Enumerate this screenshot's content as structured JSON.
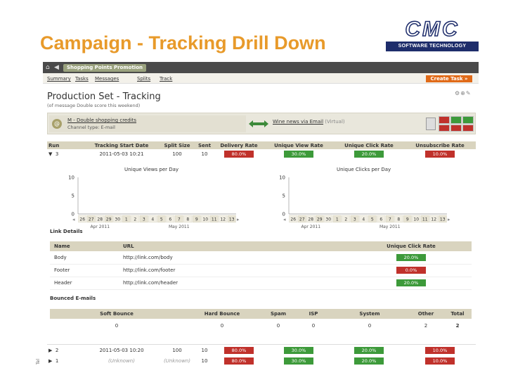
{
  "slide": {
    "title": "Campaign - Tracking Drill Down",
    "logo": {
      "letters": "CMC",
      "tagline": "SOFTWARE TECHNOLOGY"
    },
    "side_text": "Tel"
  },
  "app": {
    "topbar_title": "Shopping Points Promotion",
    "nav": [
      "Summary",
      "Tasks",
      "Messages",
      "Splits",
      "Track"
    ],
    "create_task_label": "Create Task »",
    "page_title": "Production Set - Tracking",
    "page_subtitle": "(of message Double score this weekend)",
    "channel": {
      "name": "M - Double shopping credits",
      "type": "Channel type: E-mail",
      "linked_name": "Wine news via Email",
      "linked_tag": "(Virtual)"
    },
    "colors": {
      "red": "#c0312b",
      "green": "#3d9a3a",
      "header": "#d9d4bf"
    },
    "run_table": {
      "headers": [
        "Run",
        "Tracking Start Date",
        "Split Size",
        "Sent",
        "Delivery Rate",
        "Unique View Rate",
        "Unique Click Rate",
        "Unsubscribe Rate"
      ],
      "expanded_row": {
        "run": "3",
        "start": "2011-05-03 10:21",
        "split": "100",
        "sent": "10",
        "delivery": "80.0%",
        "view": "30.0%",
        "click": "20.0%",
        "unsub": "10.0%"
      }
    },
    "charts": {
      "views_title": "Unique Views per Day",
      "clicks_title": "Unique Clicks per Day",
      "y_ticks": [
        "10",
        "5",
        "0"
      ],
      "x_ticks": [
        "26",
        "27",
        "28",
        "29",
        "30",
        "1",
        "2",
        "3",
        "4",
        "5",
        "6",
        "7",
        "8",
        "9",
        "10",
        "11",
        "12",
        "13"
      ],
      "month_labels": [
        "Apr 2011",
        "May 2011"
      ]
    },
    "chart_data": [
      {
        "type": "bar",
        "title": "Unique Views per Day",
        "categories": [
          "26",
          "27",
          "28",
          "29",
          "30",
          "1",
          "2",
          "3",
          "4",
          "5",
          "6",
          "7",
          "8",
          "9",
          "10",
          "11",
          "12",
          "13"
        ],
        "values": [
          0,
          0,
          0,
          0,
          0,
          0,
          0,
          0,
          0,
          0,
          0,
          0,
          0,
          0,
          0,
          0,
          0,
          0
        ],
        "ylim": [
          0,
          10
        ]
      },
      {
        "type": "bar",
        "title": "Unique Clicks per Day",
        "categories": [
          "26",
          "27",
          "28",
          "29",
          "30",
          "1",
          "2",
          "3",
          "4",
          "5",
          "6",
          "7",
          "8",
          "9",
          "10",
          "11",
          "12",
          "13"
        ],
        "values": [
          0,
          0,
          0,
          0,
          0,
          0,
          0,
          0,
          0,
          0,
          0,
          0,
          0,
          0,
          0,
          0,
          0,
          0
        ],
        "ylim": [
          0,
          10
        ]
      }
    ],
    "link_details": {
      "title": "Link Details",
      "headers": [
        "Name",
        "URL",
        "Unique Click Rate"
      ],
      "rows": [
        {
          "name": "Body",
          "url": "http://link.com/body",
          "rate": "20.0%",
          "color": "green"
        },
        {
          "name": "Footer",
          "url": "http://link.com/footer",
          "rate": "0.0%",
          "color": "red"
        },
        {
          "name": "Header",
          "url": "http://link.com/header",
          "rate": "20.0%",
          "color": "green"
        }
      ]
    },
    "bounced": {
      "title": "Bounced E-mails",
      "headers": [
        "Soft Bounce",
        "Hard Bounce",
        "Spam",
        "ISP",
        "System",
        "Other",
        "Total"
      ],
      "values": [
        "0",
        "0",
        "0",
        "0",
        "0",
        "2",
        "2"
      ]
    },
    "other_runs": [
      {
        "run": "2",
        "start": "2011-05-03 10:20",
        "split": "100",
        "sent": "10",
        "delivery": "80.0%",
        "view": "30.0%",
        "click": "20.0%",
        "unsub": "10.0%"
      },
      {
        "run": "1",
        "start": "(Unknown)",
        "split": "(Unknown)",
        "sent": "10",
        "delivery": "80.0%",
        "view": "30.0%",
        "click": "20.0%",
        "unsub": "10.0%"
      }
    ]
  }
}
